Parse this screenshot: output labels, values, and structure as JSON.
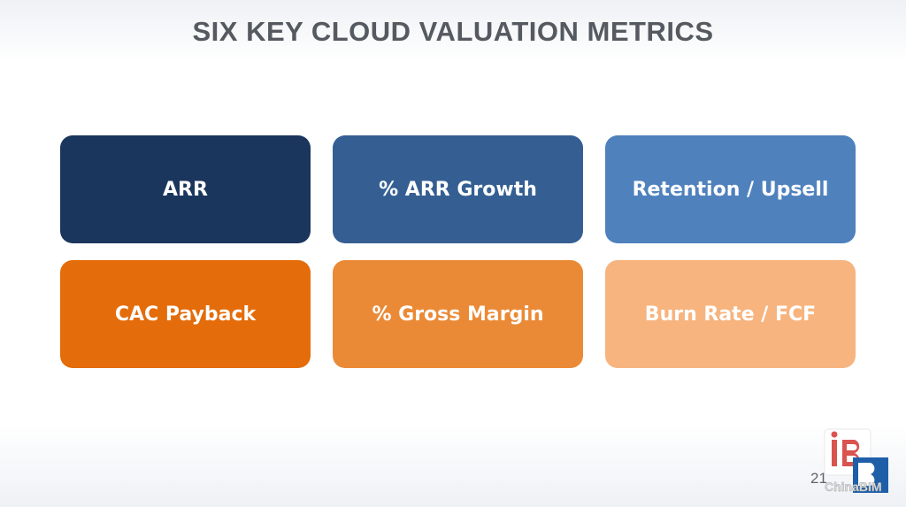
{
  "slide": {
    "title": "SIX KEY CLOUD VALUATION METRICS",
    "page_number": "21"
  },
  "metrics": [
    {
      "label": "ARR",
      "color": "#1b365d"
    },
    {
      "label": "% ARR Growth",
      "color": "#355f93"
    },
    {
      "label": "Retention / Upsell",
      "color": "#4f81bd"
    },
    {
      "label": "CAC Payback",
      "color": "#e46c0a"
    },
    {
      "label": "% Gross Margin",
      "color": "#eb8a36"
    },
    {
      "label": "Burn Rate / FCF",
      "color": "#f7b47f"
    }
  ],
  "watermark": {
    "logo_icon": "chinabim-logo-icon",
    "text": "ChinaBIM",
    "colors": {
      "red": "#d9534f",
      "blue": "#1f5fa8"
    }
  }
}
